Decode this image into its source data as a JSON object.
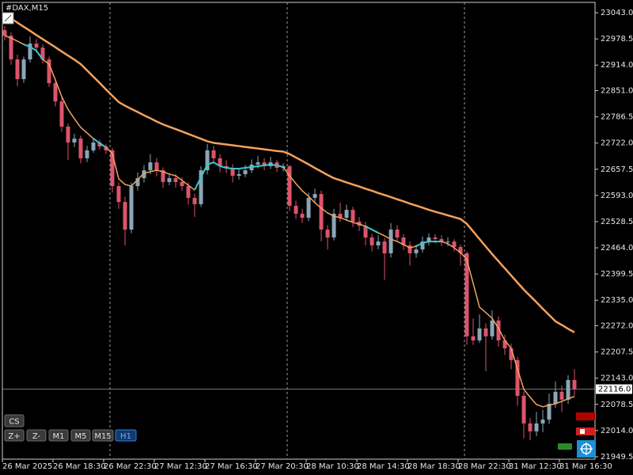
{
  "chart_data": {
    "type": "candlestick",
    "title": "#DAX,M15",
    "up_color": "#8aa6b8",
    "down_color": "#dc546c",
    "ylim": [
      21943.5,
      23068.5
    ],
    "yticks": [
      {
        "value": 23043.0,
        "label": "23043.0"
      },
      {
        "value": 22978.5,
        "label": "22978.5"
      },
      {
        "value": 22914.0,
        "label": "22914.0"
      },
      {
        "value": 22851.0,
        "label": "22851.0"
      },
      {
        "value": 22786.5,
        "label": "22786.5"
      },
      {
        "value": 22722.0,
        "label": "22722.0"
      },
      {
        "value": 22657.5,
        "label": "22657.5"
      },
      {
        "value": 22593.0,
        "label": "22593.0"
      },
      {
        "value": 22528.5,
        "label": "22528.5"
      },
      {
        "value": 22464.0,
        "label": "22464.0"
      },
      {
        "value": 22399.5,
        "label": "22399.5"
      },
      {
        "value": 22335.0,
        "label": "22335.0"
      },
      {
        "value": 22272.0,
        "label": "22272.0"
      },
      {
        "value": 22207.5,
        "label": "22207.5"
      },
      {
        "value": 22143.0,
        "label": "22143.0"
      },
      {
        "value": 22078.5,
        "label": "22078.5"
      },
      {
        "value": 22014.0,
        "label": "22014.0"
      },
      {
        "value": 21949.5,
        "label": "21949.5"
      }
    ],
    "current_price": {
      "value": 22116.0,
      "label": "22116.0"
    },
    "categories": [
      "26 Mar 2025",
      null,
      null,
      null,
      null,
      null,
      null,
      null,
      "26 Mar 18:30",
      null,
      null,
      null,
      null,
      null,
      null,
      null,
      "26 Mar 22:30",
      null,
      null,
      null,
      null,
      null,
      null,
      null,
      "27 Mar 12:30",
      null,
      null,
      null,
      null,
      null,
      null,
      null,
      "27 Mar 16:30",
      null,
      null,
      null,
      null,
      null,
      null,
      null,
      "27 Mar 20:30",
      null,
      null,
      null,
      null,
      null,
      null,
      null,
      "28 Mar 10:30",
      null,
      null,
      null,
      null,
      null,
      null,
      null,
      "28 Mar 14:30",
      null,
      null,
      null,
      null,
      null,
      null,
      null,
      "28 Mar 18:30",
      null,
      null,
      null,
      null,
      null,
      null,
      null,
      "28 Mar 22:30",
      null,
      null,
      null,
      null,
      null,
      null,
      null,
      "31 Mar 12:30",
      null,
      null,
      null,
      null,
      null,
      null,
      null,
      "31 Mar 16:30",
      null,
      null
    ],
    "candles": [
      [
        23000,
        23010,
        22975,
        22986.5
      ],
      [
        22986.5,
        22995,
        22915,
        22928
      ],
      [
        22928,
        22940,
        22862,
        22879.5
      ],
      [
        22879.5,
        22935,
        22870,
        22928
      ],
      [
        22928,
        22985,
        22920,
        22967
      ],
      [
        22967,
        22978,
        22945,
        22957
      ],
      [
        22957,
        22965,
        22918,
        22928
      ],
      [
        22928,
        22935,
        22860,
        22869.5
      ],
      [
        22869.5,
        22880,
        22812,
        22824.5
      ],
      [
        22824.5,
        22835,
        22750,
        22762.5
      ],
      [
        22762.5,
        22770,
        22680,
        22723.5
      ],
      [
        22723.5,
        22745,
        22712,
        22733
      ],
      [
        22733,
        22740,
        22672,
        22684.5
      ],
      [
        22684.5,
        22715,
        22675,
        22704
      ],
      [
        22704,
        22735,
        22698,
        22723.5
      ],
      [
        22723.5,
        22730,
        22705,
        22713.5
      ],
      [
        22713.5,
        22720,
        22695,
        22704
      ],
      [
        22704,
        22710,
        22600,
        22616
      ],
      [
        22616,
        22625,
        22560,
        22577
      ],
      [
        22577,
        22590,
        22470,
        22509
      ],
      [
        22509,
        22625,
        22500,
        22616
      ],
      [
        22616,
        22650,
        22605,
        22635.5
      ],
      [
        22635.5,
        22668,
        22625,
        22655
      ],
      [
        22655,
        22695,
        22645,
        22674.5
      ],
      [
        22674.5,
        22685,
        22640,
        22655
      ],
      [
        22655,
        22662,
        22612,
        22626
      ],
      [
        22626,
        22648,
        22618,
        22635.5
      ],
      [
        22635.5,
        22645,
        22612,
        22626
      ],
      [
        22626,
        22638,
        22605,
        22616
      ],
      [
        22616,
        22625,
        22570,
        22587
      ],
      [
        22587,
        22598,
        22540,
        22571.5
      ],
      [
        22571.5,
        22665,
        22565,
        22655
      ],
      [
        22655,
        22720,
        22645,
        22704
      ],
      [
        22704,
        22715,
        22672,
        22684.5
      ],
      [
        22684.5,
        22695,
        22650,
        22665
      ],
      [
        22665,
        22680,
        22648,
        22661
      ],
      [
        22661,
        22670,
        22625,
        22641.5
      ],
      [
        22641.5,
        22660,
        22632,
        22645.5
      ],
      [
        22645.5,
        22668,
        22638,
        22655
      ],
      [
        22655,
        22682,
        22648,
        22669
      ],
      [
        22669,
        22690,
        22660,
        22674.5
      ],
      [
        22674.5,
        22685,
        22655,
        22665
      ],
      [
        22665,
        22688,
        22658,
        22674.5
      ],
      [
        22674.5,
        22680,
        22650,
        22661
      ],
      [
        22661,
        22672,
        22652,
        22665
      ],
      [
        22665,
        22668,
        22555,
        22567.5
      ],
      [
        22567.5,
        22580,
        22535,
        22548
      ],
      [
        22548,
        22560,
        22525,
        22538
      ],
      [
        22538,
        22600,
        22530,
        22587
      ],
      [
        22587,
        22610,
        22575,
        22596.5
      ],
      [
        22596.5,
        22605,
        22480,
        22509
      ],
      [
        22509,
        22520,
        22460,
        22489.5
      ],
      [
        22489.5,
        22560,
        22482,
        22548
      ],
      [
        22548,
        22575,
        22528,
        22538
      ],
      [
        22538,
        22570,
        22530,
        22557.5
      ],
      [
        22557.5,
        22565,
        22515,
        22528.5
      ],
      [
        22528.5,
        22540,
        22505,
        22518.5
      ],
      [
        22518.5,
        22528,
        22470,
        22489.5
      ],
      [
        22489.5,
        22498,
        22455,
        22470
      ],
      [
        22470,
        22495,
        22460,
        22479.5
      ],
      [
        22479.5,
        22488,
        22385,
        22450.5
      ],
      [
        22450.5,
        22525,
        22440,
        22509
      ],
      [
        22509,
        22520,
        22478,
        22489.5
      ],
      [
        22489.5,
        22498,
        22458,
        22470
      ],
      [
        22470,
        22480,
        22420,
        22450.5
      ],
      [
        22450.5,
        22472,
        22440,
        22460
      ],
      [
        22460,
        22492,
        22452,
        22479.5
      ],
      [
        22479.5,
        22500,
        22470,
        22489.5
      ],
      [
        22489.5,
        22498,
        22475,
        22485.5
      ],
      [
        22485.5,
        22495,
        22468,
        22479.5
      ],
      [
        22479.5,
        22490,
        22468,
        22479.5
      ],
      [
        22479.5,
        22485,
        22455,
        22466
      ],
      [
        22466,
        22472,
        22420,
        22450.5
      ],
      [
        22450.5,
        22455,
        22225,
        22246
      ],
      [
        22246,
        22290,
        22225,
        22236
      ],
      [
        22236,
        22300,
        22230,
        22265.5
      ],
      [
        22265.5,
        22278,
        22160,
        22246
      ],
      [
        22246,
        22310,
        22238,
        22285
      ],
      [
        22285,
        22295,
        22220,
        22236
      ],
      [
        22236,
        22250,
        22200,
        22216.5
      ],
      [
        22216.5,
        22228,
        22165,
        22187.5
      ],
      [
        22187.5,
        22195,
        22075,
        22099.5
      ],
      [
        22099.5,
        22110,
        21995,
        22031.5
      ],
      [
        22031.5,
        22045,
        21990,
        22012
      ],
      [
        22012,
        22060,
        22000,
        22031.5
      ],
      [
        22031.5,
        22065,
        22010,
        22041
      ],
      [
        22041,
        22105,
        22030,
        22080
      ],
      [
        22080,
        22135,
        22070,
        22109.5
      ],
      [
        22109.5,
        22125,
        22060,
        22090
      ],
      [
        22090,
        22150,
        22080,
        22138.5
      ],
      [
        22138.5,
        22165,
        22100,
        22116
      ]
    ],
    "series": [
      {
        "color": "#f5a15c",
        "width": 2.5,
        "values": [
          23039,
          23029,
          23018.5,
          23008.5,
          22998.5,
          22988,
          22978,
          22968,
          22958,
          22947.5,
          22937.5,
          22927.5,
          22916.5,
          22901,
          22885.5,
          22870,
          22854,
          22838.5,
          22823,
          22814,
          22806,
          22798.5,
          22790.5,
          22783,
          22775,
          22768,
          22762,
          22756.5,
          22750.5,
          22744.5,
          22738.5,
          22732.5,
          22726.5,
          22722.5,
          22720.5,
          22718.5,
          22716.5,
          22714.5,
          22712.5,
          22710.5,
          22708.5,
          22706.5,
          22704.5,
          22702.5,
          22701,
          22695,
          22686.5,
          22678,
          22669.5,
          22660.5,
          22652,
          22643.5,
          22635.5,
          22630.5,
          22625,
          22620,
          22615,
          22609.5,
          22604.5,
          22599,
          22594,
          22589,
          22583.5,
          22578.5,
          22573,
          22568,
          22563,
          22557.5,
          22553,
          22548.5,
          22544,
          22539.5,
          22535,
          22523,
          22504.5,
          22485.5,
          22467,
          22448.5,
          22431,
          22413.5,
          22396,
          22378.5,
          22361,
          22345.5,
          22330,
          22314,
          22298.5,
          22283,
          22274,
          22264.5,
          22256
        ]
      },
      {
        "color": "#f2a25e",
        "width": 1.5,
        "values": [
          22986.5,
          22980.5,
          22973,
          22965,
          22959,
          22949.5,
          22928,
          22916.5,
          22877.5,
          22836.5,
          22805,
          22782,
          22760.5,
          22747,
          22733,
          22721.5,
          22711.5,
          22696,
          22634,
          22620,
          22616,
          22632,
          22647.5,
          22651.5,
          22655,
          22651.5,
          22645.5,
          22641.5,
          22630,
          22618,
          22606.5,
          22637.5,
          22669,
          22674.5,
          22665,
          22661,
          22659,
          22659,
          22661,
          22663,
          22665,
          22667,
          22669,
          22667,
          22663,
          22641.5,
          22622,
          22604.5,
          22591,
          22575,
          22561.5,
          22550,
          22542,
          22538,
          22532.5,
          22526.5,
          22522.5,
          22517,
          22509,
          22501,
          22493.5,
          22485.5,
          22479.5,
          22472,
          22464,
          22468,
          22476,
          22479.5,
          22479.5,
          22479.5,
          22474,
          22464,
          22452.5,
          22435,
          22376.5,
          22318,
          22304.5,
          22290.5,
          22265.5,
          22236,
          22216.5,
          22166,
          22115.5,
          22096,
          22078,
          22072.5,
          22076.5,
          22080,
          22086,
          22092,
          22098
        ]
      },
      {
        "color": "#3cc8cc",
        "width": 2,
        "values": [
          null,
          null,
          null,
          22965,
          22959,
          22949.5,
          22928,
          null,
          null,
          null,
          null,
          null,
          null,
          null,
          22733,
          22721.5,
          22711.5,
          null,
          null,
          null,
          null,
          null,
          null,
          null,
          null,
          null,
          null,
          null,
          null,
          null,
          22606.5,
          22637.5,
          22669,
          22674.5,
          22665,
          22661,
          22659,
          22659,
          22661,
          22663,
          22665,
          22667,
          22669,
          22667,
          22663,
          null,
          null,
          null,
          null,
          null,
          null,
          null,
          null,
          null,
          null,
          null,
          null,
          22517,
          22509,
          22501,
          null,
          null,
          null,
          null,
          null,
          22468,
          22476,
          22479.5,
          22479.5,
          22479.5,
          null,
          null,
          null,
          null,
          null,
          null,
          null,
          null,
          null,
          null,
          null,
          null,
          null,
          null,
          null,
          null,
          null,
          null,
          null,
          null,
          null
        ]
      }
    ]
  },
  "toolbar": {
    "buttons": [
      {
        "label": "CS",
        "active": false
      },
      {
        "label": "Z+",
        "active": false
      },
      {
        "label": "Z-",
        "active": false
      },
      {
        "label": "M1",
        "active": false
      },
      {
        "label": "M5",
        "active": false
      },
      {
        "label": "M15",
        "active": false
      },
      {
        "label": "H1",
        "active": true
      }
    ]
  }
}
